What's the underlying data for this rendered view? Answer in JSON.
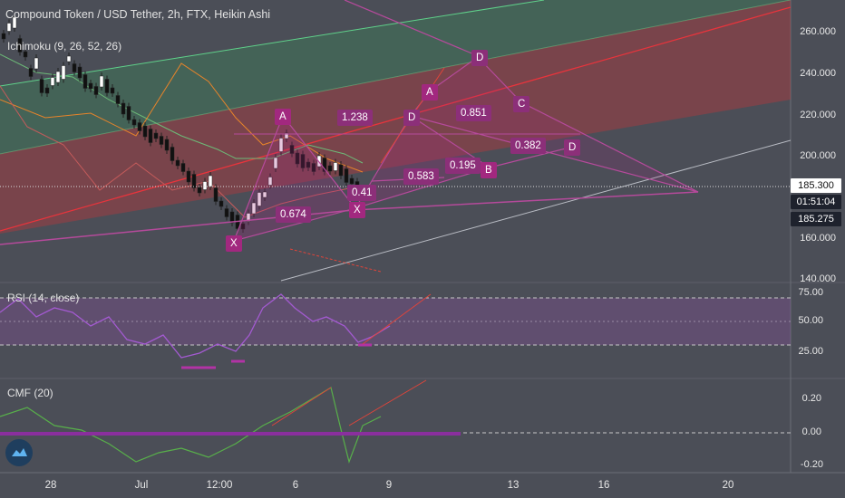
{
  "header": {
    "symbol_title": "Compound Token / USD Tether, 2h, FTX, Heikin Ashi",
    "ichimoku_label": "Ichimoku (9, 26, 52, 26)"
  },
  "panes": {
    "rsi_label": "RSI (14, close)",
    "cmf_label": "CMF (20)"
  },
  "price_axis": {
    "ticks": [
      "260.000",
      "240.000",
      "220.000",
      "200.000",
      "160.000",
      "140.000"
    ],
    "current_price": "185.300",
    "countdown": "01:51:04",
    "secondary_price": "185.275"
  },
  "rsi_axis": {
    "ticks": [
      "75.00",
      "50.00",
      "25.00"
    ]
  },
  "cmf_axis": {
    "ticks": [
      "0.20",
      "0.00",
      "-0.20"
    ]
  },
  "time_axis": {
    "labels": [
      "28",
      "Jul",
      "12:00",
      "6",
      "9",
      "13",
      "16",
      "20"
    ]
  },
  "pattern_labels": {
    "a1": "A",
    "a2": "A",
    "d1": "D",
    "d2": "D",
    "d3": "D",
    "x1": "X",
    "x2": "X",
    "b1": "B",
    "c1": "C",
    "r1238": "1.238",
    "r0851": "0.851",
    "r0382": "0.382",
    "r0195": "0.195",
    "r0583": "0.583",
    "r041": "0.41",
    "r0674": "0.674"
  },
  "colors": {
    "background": "#4b4e57",
    "pattern": "#a2287f",
    "up_candle": "#ffffff",
    "down_candle": "#111111",
    "channel_red": "#d9363e",
    "channel_green": "#3fb36a"
  },
  "icons": {
    "logo": "tradingview-logo-icon"
  }
}
